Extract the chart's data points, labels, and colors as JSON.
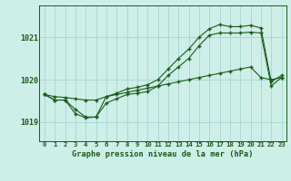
{
  "title": "Graphe pression niveau de la mer (hPa)",
  "xlabel_ticks": [
    "0",
    "1",
    "2",
    "3",
    "4",
    "5",
    "6",
    "7",
    "8",
    "9",
    "10",
    "11",
    "12",
    "13",
    "14",
    "15",
    "16",
    "17",
    "18",
    "19",
    "20",
    "21",
    "22",
    "23"
  ],
  "ylim": [
    1018.55,
    1021.75
  ],
  "yticks": [
    1019,
    1020,
    1021
  ],
  "background_color": "#ceeee8",
  "grid_color": "#a0d0cc",
  "line_color": "#1a5c1a",
  "series": {
    "line_flat": [
      1019.65,
      1019.6,
      1019.58,
      1019.55,
      1019.52,
      1019.52,
      1019.6,
      1019.65,
      1019.7,
      1019.75,
      1019.8,
      1019.85,
      1019.9,
      1019.95,
      1020.0,
      1020.05,
      1020.1,
      1020.15,
      1020.2,
      1020.25,
      1020.3,
      1020.05,
      1020.0,
      1020.05
    ],
    "line_mid": [
      1019.65,
      1019.52,
      1019.52,
      1019.2,
      1019.1,
      1019.12,
      1019.45,
      1019.55,
      1019.65,
      1019.68,
      1019.72,
      1019.85,
      1020.1,
      1020.3,
      1020.5,
      1020.8,
      1021.05,
      1021.1,
      1021.1,
      1021.1,
      1021.12,
      1021.1,
      1019.85,
      1020.05
    ],
    "line_high": [
      1019.65,
      1019.52,
      1019.52,
      1019.3,
      1019.12,
      1019.12,
      1019.6,
      1019.68,
      1019.78,
      1019.82,
      1019.88,
      1020.0,
      1020.25,
      1020.5,
      1020.72,
      1021.0,
      1021.2,
      1021.3,
      1021.25,
      1021.25,
      1021.28,
      1021.22,
      1019.95,
      1020.1
    ]
  }
}
